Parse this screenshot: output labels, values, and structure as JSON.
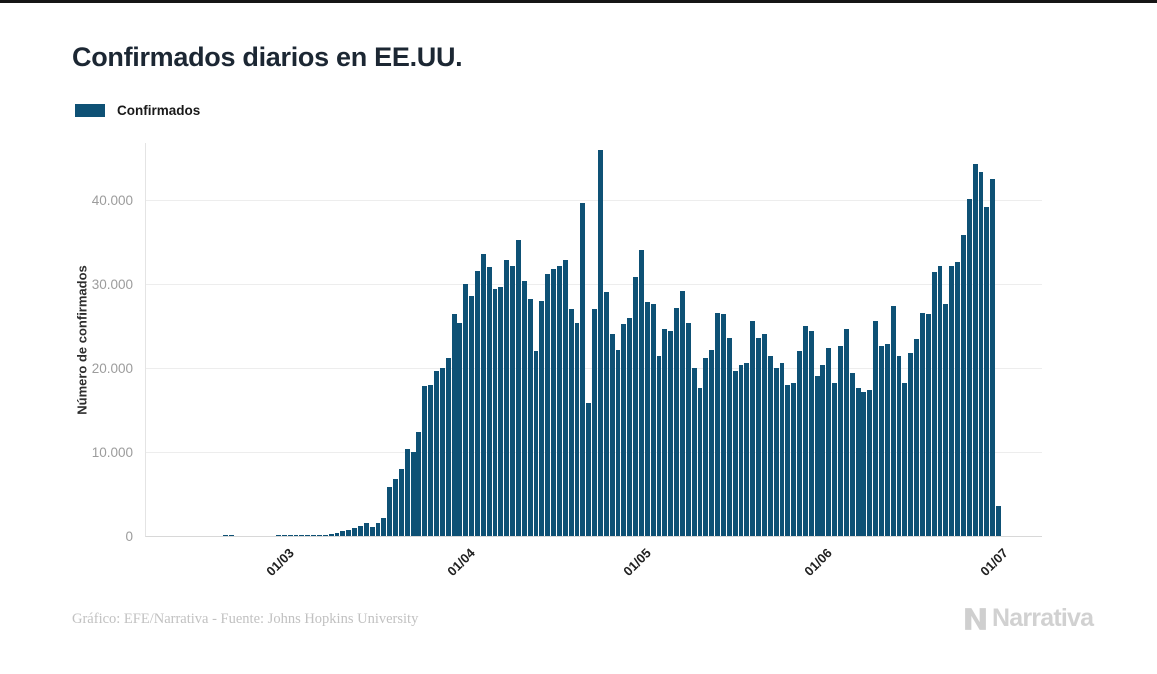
{
  "page": {
    "title": "Confirmados diarios en EE.UU."
  },
  "legend": {
    "label": "Confirmados",
    "swatch_color": "#0e5175"
  },
  "footer": {
    "credit": "Gráfico: EFE/Narrativa - Fuente: Johns Hopkins University",
    "brand": "Narrativa"
  },
  "colors": {
    "bar": "#0e5175",
    "gridline": "#ededed",
    "axis_text": "#9c9c9c"
  },
  "chart_data": {
    "type": "bar",
    "title": "Confirmados diarios en EE.UU.",
    "xlabel": "",
    "ylabel": "Número de confirmados",
    "legend_entries": [
      "Confirmados"
    ],
    "bar_color": "#0e5175",
    "grid": true,
    "ylim": [
      0,
      46900
    ],
    "yticks": [
      {
        "value": 0,
        "label": "0"
      },
      {
        "value": 10000,
        "label": "10.000"
      },
      {
        "value": 20000,
        "label": "20.000"
      },
      {
        "value": 30000,
        "label": "30.000"
      },
      {
        "value": 40000,
        "label": "40.000"
      }
    ],
    "xticks": [
      {
        "index": 15,
        "label": "01/03"
      },
      {
        "index": 46,
        "label": "01/04"
      },
      {
        "index": 76,
        "label": "01/05"
      },
      {
        "index": 107,
        "label": "01/06"
      },
      {
        "index": 137,
        "label": "01/07"
      }
    ],
    "dates": [
      "15/02",
      "16/02",
      "17/02",
      "18/02",
      "19/02",
      "20/02",
      "21/02",
      "22/02",
      "23/02",
      "24/02",
      "25/02",
      "26/02",
      "27/02",
      "28/02",
      "29/02",
      "01/03",
      "02/03",
      "03/03",
      "04/03",
      "05/03",
      "06/03",
      "07/03",
      "08/03",
      "09/03",
      "10/03",
      "11/03",
      "12/03",
      "13/03",
      "14/03",
      "15/03",
      "16/03",
      "17/03",
      "18/03",
      "19/03",
      "20/03",
      "21/03",
      "22/03",
      "23/03",
      "24/03",
      "25/03",
      "26/03",
      "27/03",
      "28/03",
      "29/03",
      "30/03",
      "31/03",
      "01/04",
      "02/04",
      "03/04",
      "04/04",
      "05/04",
      "06/04",
      "07/04",
      "08/04",
      "09/04",
      "10/04",
      "11/04",
      "12/04",
      "13/04",
      "14/04",
      "15/04",
      "16/04",
      "17/04",
      "18/04",
      "19/04",
      "20/04",
      "21/04",
      "22/04",
      "23/04",
      "24/04",
      "25/04",
      "26/04",
      "27/04",
      "28/04",
      "29/04",
      "30/04",
      "01/05",
      "02/05",
      "03/05",
      "04/05",
      "05/05",
      "06/05",
      "07/05",
      "08/05",
      "09/05",
      "10/05",
      "11/05",
      "12/05",
      "13/05",
      "14/05",
      "15/05",
      "16/05",
      "17/05",
      "18/05",
      "19/05",
      "20/05",
      "21/05",
      "22/05",
      "23/05",
      "24/05",
      "25/05",
      "26/05",
      "27/05",
      "28/05",
      "29/05",
      "30/05",
      "31/05",
      "01/06",
      "02/06",
      "03/06",
      "04/06",
      "05/06",
      "06/06",
      "07/06",
      "08/06",
      "09/06",
      "10/06",
      "11/06",
      "12/06",
      "13/06",
      "14/06",
      "15/06",
      "16/06",
      "17/06",
      "18/06",
      "19/06",
      "20/06",
      "21/06",
      "22/06",
      "23/06",
      "24/06",
      "25/06",
      "26/06",
      "27/06",
      "28/06",
      "29/06",
      "30/06",
      "01/07"
    ],
    "values": [
      2,
      1,
      2,
      1,
      3,
      15,
      17,
      2,
      1,
      2,
      3,
      4,
      5,
      6,
      10,
      20,
      25,
      35,
      50,
      70,
      100,
      120,
      140,
      240,
      400,
      560,
      680,
      900,
      1200,
      1500,
      1100,
      1600,
      2100,
      5800,
      6800,
      8000,
      10400,
      10000,
      12400,
      17800,
      18000,
      19600,
      20000,
      21200,
      26400,
      25400,
      30000,
      28600,
      31600,
      33600,
      32000,
      29400,
      29600,
      32800,
      32200,
      35200,
      30400,
      28200,
      22000,
      28000,
      31200,
      31800,
      32200,
      32800,
      27000,
      25400,
      39700,
      15800,
      27000,
      46000,
      29000,
      24000,
      22200,
      25200,
      26000,
      30800,
      34000,
      27800,
      27600,
      21400,
      24600,
      24400,
      27200,
      29200,
      25400,
      20000,
      17600,
      21200,
      22200,
      26600,
      26400,
      23600,
      19600,
      20400,
      20600,
      25600,
      23600,
      24000,
      21400,
      20000,
      20600,
      18000,
      18200,
      22000,
      25000,
      24400,
      19000,
      20400,
      22400,
      18200,
      22600,
      24600,
      19400,
      17600,
      17200,
      17400,
      25600,
      22600,
      22800,
      27400,
      21400,
      18200,
      21800,
      23400,
      26600,
      26400,
      31400,
      32200,
      27600,
      32200,
      32600,
      35800,
      40100,
      44300,
      43300,
      39200,
      42500,
      3600
    ]
  }
}
